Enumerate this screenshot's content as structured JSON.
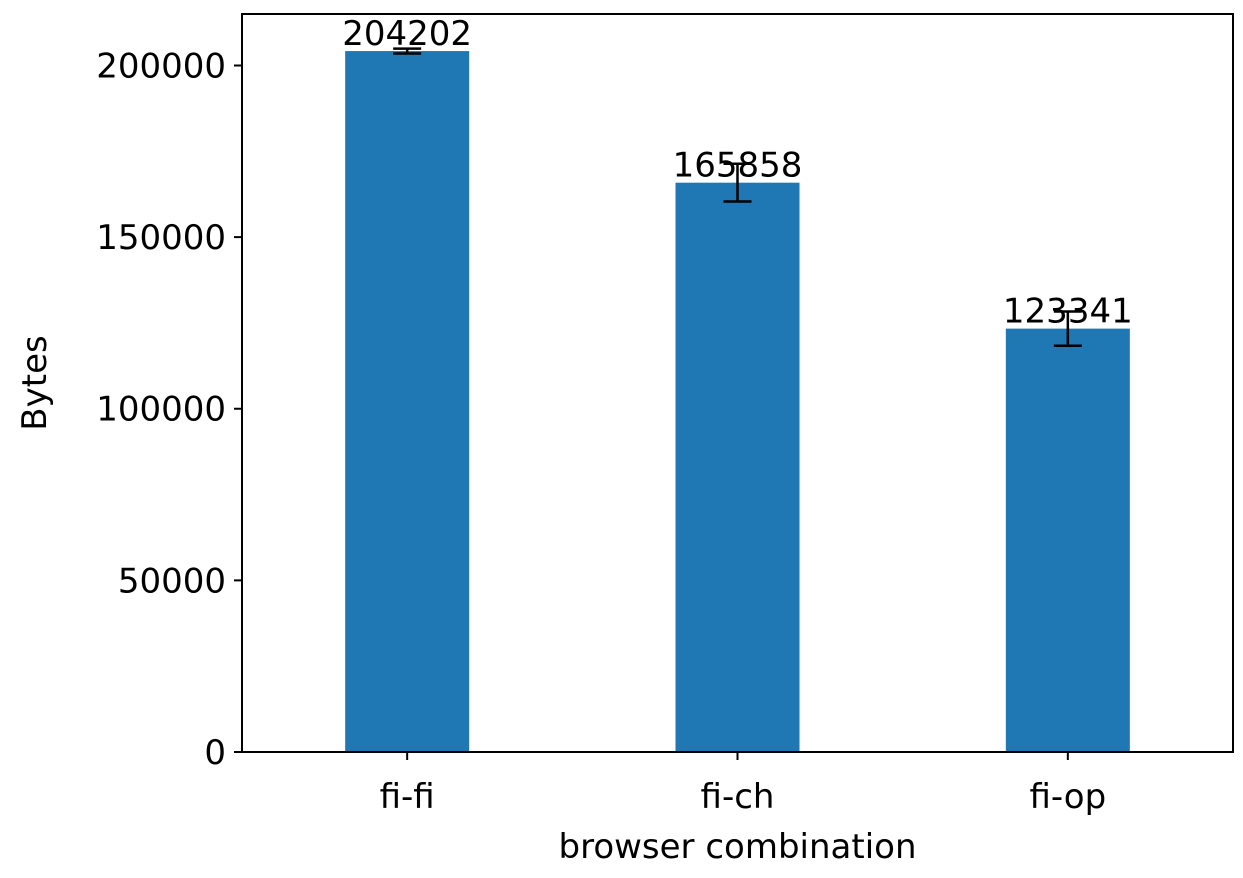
{
  "chart_data": {
    "type": "bar",
    "title": "",
    "xlabel": "browser combination",
    "ylabel": "Bytes",
    "categories": [
      "fi-fi",
      "fi-ch",
      "fi-op"
    ],
    "values": [
      204202,
      165858,
      123341
    ],
    "errors": [
      700,
      5500,
      5000
    ],
    "data_labels": [
      "204202",
      "165858",
      "123341"
    ],
    "ylim": [
      0,
      215000
    ],
    "yticks": [
      0,
      50000,
      100000,
      150000,
      200000
    ],
    "ytick_labels": [
      "0",
      "50000",
      "100000",
      "150000",
      "200000"
    ],
    "grid": false,
    "legend": "none",
    "colors": {
      "bar": "#1f77b4",
      "error_bar": "#000000",
      "axis": "#000000"
    }
  }
}
